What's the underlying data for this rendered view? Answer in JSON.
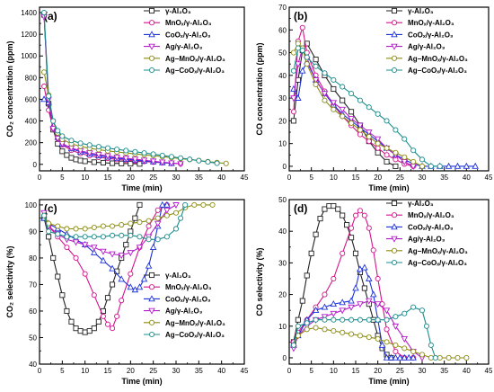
{
  "colors": {
    "gamma": "#222222",
    "mnox": "#d4148c",
    "coox": "#1f33d8",
    "ag": "#b41ec8",
    "agmn": "#8c8c12",
    "agco": "#1a8c8c"
  },
  "legend_entries": [
    "γ-Al₂O₃",
    "MnOₓ/γ-Al₂O₃",
    "CoOₓ/γ-Al₂O₃",
    "Ag/γ-Al₂O₃",
    "Ag−MnOₓ/γ-Al₂O₃",
    "Ag−CoOₓ/γ-Al₂O₃"
  ],
  "marker_shapes": [
    "square",
    "circle",
    "triangle",
    "triangle-down",
    "circle",
    "circle"
  ],
  "chart_data": [
    {
      "panel": "(a)",
      "type": "line",
      "xlabel": "Time (min)",
      "ylabel": "CO₂ concentration (ppm)",
      "xlim": [
        0,
        45
      ],
      "ylim": [
        -60,
        1450
      ],
      "xticks": [
        0,
        5,
        10,
        15,
        20,
        25,
        30,
        35,
        40,
        45
      ],
      "yticks": [
        0,
        200,
        400,
        600,
        800,
        1000,
        1200,
        1400
      ],
      "legend": "top-right",
      "series": [
        {
          "name": "γ-Al₂O₃",
          "x": [
            1,
            2,
            3,
            4,
            5,
            6,
            7,
            8,
            9,
            10,
            12,
            14,
            16,
            18,
            20,
            22
          ],
          "y": [
            1380,
            560,
            320,
            190,
            120,
            85,
            60,
            45,
            35,
            28,
            20,
            15,
            10,
            8,
            6,
            4
          ]
        },
        {
          "name": "MnOₓ/γ-Al₂O₃",
          "x": [
            1,
            2,
            3,
            4,
            5,
            7,
            9,
            11,
            13,
            15,
            17,
            19,
            21,
            23,
            25,
            27,
            29,
            31
          ],
          "y": [
            720,
            500,
            330,
            240,
            180,
            130,
            100,
            80,
            65,
            55,
            45,
            38,
            32,
            26,
            20,
            15,
            10,
            6
          ]
        },
        {
          "name": "CoOₓ/γ-Al₂O₃",
          "x": [
            1,
            2,
            3,
            4,
            5,
            7,
            9,
            11,
            13,
            15,
            17,
            19,
            21,
            23,
            25,
            27,
            29
          ],
          "y": [
            600,
            570,
            360,
            250,
            190,
            145,
            115,
            95,
            80,
            67,
            57,
            48,
            40,
            32,
            24,
            16,
            8
          ]
        },
        {
          "name": "Ag/γ-Al₂O₃",
          "x": [
            1,
            2,
            3,
            4,
            5,
            7,
            9,
            11,
            13,
            15,
            17,
            19,
            21,
            23,
            25,
            27,
            29,
            31
          ],
          "y": [
            1360,
            600,
            330,
            240,
            190,
            150,
            125,
            105,
            90,
            78,
            66,
            56,
            47,
            38,
            29,
            20,
            12,
            5
          ]
        },
        {
          "name": "Ag−MnOₓ/γ-Al₂O₃",
          "x": [
            1,
            2,
            3,
            4,
            5,
            7,
            9,
            11,
            13,
            15,
            17,
            19,
            21,
            23,
            25,
            27,
            29,
            31,
            33,
            35,
            37,
            39,
            41
          ],
          "y": [
            850,
            640,
            400,
            290,
            230,
            190,
            165,
            148,
            135,
            124,
            114,
            105,
            96,
            88,
            80,
            71,
            62,
            53,
            44,
            35,
            25,
            16,
            8
          ]
        },
        {
          "name": "Ag−CoOₓ/γ-Al₂O₃",
          "x": [
            1,
            2,
            3,
            4,
            5,
            7,
            9,
            11,
            13,
            15,
            17,
            19,
            21,
            23,
            25,
            27,
            29,
            31,
            33,
            35,
            37,
            39
          ],
          "y": [
            1400,
            630,
            400,
            310,
            260,
            220,
            195,
            178,
            163,
            150,
            138,
            127,
            116,
            105,
            94,
            82,
            70,
            58,
            46,
            34,
            22,
            10
          ]
        }
      ]
    },
    {
      "panel": "(b)",
      "type": "line",
      "xlabel": "Time (min)",
      "ylabel": "CO concentration (ppm)",
      "xlim": [
        0,
        45
      ],
      "ylim": [
        -2,
        70
      ],
      "xticks": [
        0,
        5,
        10,
        15,
        20,
        25,
        30,
        35,
        40,
        45
      ],
      "yticks": [
        0,
        10,
        20,
        30,
        40,
        50,
        60,
        70
      ],
      "legend": "top-right",
      "series": [
        {
          "name": "γ-Al₂O₃",
          "x": [
            1,
            2,
            3,
            4,
            6,
            8,
            10,
            12,
            14,
            16,
            18,
            20,
            22,
            24
          ],
          "y": [
            20,
            38,
            51,
            54,
            47,
            40,
            34,
            29,
            24,
            18,
            11,
            6,
            2,
            0
          ]
        },
        {
          "name": "MnOₓ/γ-Al₂O₃",
          "x": [
            1,
            2,
            3,
            4,
            6,
            8,
            10,
            12,
            14,
            16,
            18,
            20,
            22,
            24,
            26,
            28
          ],
          "y": [
            24,
            55,
            61,
            50,
            40,
            33,
            27,
            22,
            18,
            14,
            11,
            8,
            5,
            3,
            1,
            0
          ]
        },
        {
          "name": "CoOₓ/γ-Al₂O₃",
          "x": [
            1,
            2,
            3,
            4,
            6,
            8,
            10,
            12,
            14,
            16,
            18,
            20,
            22,
            24,
            26,
            28,
            30,
            32,
            34,
            36,
            38,
            40,
            42
          ],
          "y": [
            34,
            30,
            42,
            46,
            38,
            32,
            27,
            23,
            20,
            17,
            14,
            11,
            8,
            5,
            3,
            1,
            0,
            0,
            0,
            0,
            0,
            0,
            0
          ]
        },
        {
          "name": "Ag/γ-Al₂O₃",
          "x": [
            1,
            2,
            3,
            4,
            6,
            8,
            10,
            12,
            14,
            16,
            18,
            20,
            22,
            24,
            26,
            28
          ],
          "y": [
            30,
            45,
            52,
            47,
            38,
            32,
            28,
            25,
            21,
            18,
            15,
            12,
            8,
            5,
            2,
            0
          ]
        },
        {
          "name": "Ag−MnOₓ/γ-Al₂O₃",
          "x": [
            1,
            2,
            3,
            4,
            6,
            8,
            10,
            12,
            14,
            16,
            18,
            20,
            22,
            24,
            26,
            28,
            30
          ],
          "y": [
            50,
            54,
            52,
            45,
            36,
            29,
            25,
            22,
            19,
            16,
            13,
            10,
            8,
            6,
            4,
            2,
            0
          ]
        },
        {
          "name": "Ag−CoOₓ/γ-Al₂O₃",
          "x": [
            1,
            2,
            3,
            4,
            6,
            8,
            10,
            12,
            14,
            16,
            18,
            20,
            22,
            24,
            26,
            28,
            30,
            32,
            34
          ],
          "y": [
            42,
            52,
            51,
            48,
            44,
            41,
            38,
            35,
            32,
            29,
            26,
            23,
            20,
            16,
            12,
            7,
            3,
            0,
            0
          ]
        }
      ]
    },
    {
      "panel": "(c)",
      "type": "line",
      "xlabel": "Time (min)",
      "ylabel": "CO₂ selectivity (%)",
      "xlim": [
        0,
        45
      ],
      "ylim": [
        40,
        102
      ],
      "xticks": [
        0,
        5,
        10,
        15,
        20,
        25,
        30,
        35,
        40,
        45
      ],
      "yticks": [
        40,
        50,
        60,
        70,
        80,
        90,
        100
      ],
      "legend": "bottom-right",
      "series": [
        {
          "name": "γ-Al₂O₃",
          "x": [
            1,
            2,
            3,
            4,
            5,
            6,
            7,
            8,
            9,
            10,
            11,
            12,
            13,
            14,
            15,
            16,
            17,
            18,
            19,
            20,
            21,
            22
          ],
          "y": [
            95,
            88,
            80,
            73,
            66,
            60,
            56,
            53.5,
            52.5,
            52,
            52.5,
            53.5,
            56,
            60,
            65,
            70,
            75,
            80,
            85,
            90,
            95,
            100
          ]
        },
        {
          "name": "MnOₓ/γ-Al₂O₃",
          "x": [
            1,
            2,
            4,
            6,
            8,
            10,
            12,
            14,
            15,
            16,
            17,
            18,
            20,
            22,
            24,
            26,
            28
          ],
          "y": [
            96,
            92,
            88,
            84,
            80,
            74,
            66,
            58,
            55,
            53.5,
            58,
            64,
            74,
            84,
            92,
            98,
            100
          ]
        },
        {
          "name": "CoOₓ/γ-Al₂O₃",
          "x": [
            1,
            2,
            4,
            6,
            8,
            10,
            12,
            14,
            16,
            18,
            20,
            21,
            22,
            23,
            24,
            25,
            26,
            27,
            28
          ],
          "y": [
            95,
            93,
            91,
            89,
            87,
            85,
            82,
            79,
            76,
            72,
            69,
            68,
            69,
            72,
            77,
            84,
            92,
            100,
            100
          ]
        },
        {
          "name": "Ag/γ-Al₂O₃",
          "x": [
            1,
            2,
            4,
            6,
            8,
            10,
            12,
            14,
            16,
            18,
            20,
            22,
            24,
            26,
            28,
            30
          ],
          "y": [
            97,
            92,
            89,
            87,
            86,
            85,
            84,
            82.5,
            81.5,
            81,
            82,
            84,
            88,
            93,
            98,
            100
          ]
        },
        {
          "name": "Ag−MnOₓ/γ-Al₂O₃",
          "x": [
            1,
            2,
            4,
            6,
            8,
            10,
            12,
            14,
            16,
            18,
            20,
            22,
            24,
            26,
            28,
            30,
            32,
            34,
            36,
            38
          ],
          "y": [
            96,
            93,
            92,
            91,
            91,
            91,
            91.5,
            92,
            92,
            92.5,
            93,
            93.5,
            94,
            95,
            96,
            97,
            99,
            100,
            100,
            100
          ]
        },
        {
          "name": "Ag−CoOₓ/γ-Al₂O₃",
          "x": [
            1,
            2,
            4,
            6,
            8,
            10,
            12,
            14,
            16,
            18,
            20,
            22,
            24,
            26,
            28,
            30,
            31,
            32
          ],
          "y": [
            96,
            90,
            89,
            88,
            88,
            88,
            88,
            88,
            88.5,
            88.5,
            88.5,
            88,
            87,
            87,
            88,
            91,
            95,
            100
          ]
        }
      ]
    },
    {
      "panel": "(d)",
      "type": "line",
      "xlabel": "Time (min)",
      "ylabel": "CO selectivity (%)",
      "xlim": [
        0,
        45
      ],
      "ylim": [
        -2,
        50
      ],
      "xticks": [
        0,
        5,
        10,
        15,
        20,
        25,
        30,
        35,
        40,
        45
      ],
      "yticks": [
        0,
        10,
        20,
        30,
        40,
        50
      ],
      "legend": "top-right",
      "series": [
        {
          "name": "γ-Al₂O₃",
          "x": [
            1,
            2,
            3,
            4,
            5,
            6,
            7,
            8,
            9,
            10,
            11,
            12,
            13,
            14,
            15,
            16,
            17,
            18,
            19,
            20,
            21,
            22,
            23
          ],
          "y": [
            5,
            12,
            18,
            26,
            33,
            39,
            44,
            47,
            48,
            48,
            47,
            45,
            42,
            38,
            33,
            27,
            22,
            17,
            12,
            7,
            3,
            1,
            0
          ]
        },
        {
          "name": "MnOₓ/γ-Al₂O₃",
          "x": [
            1,
            2,
            4,
            6,
            8,
            10,
            12,
            14,
            15,
            16,
            17,
            18,
            19,
            20,
            21,
            22,
            24,
            26,
            28
          ],
          "y": [
            5,
            8,
            12,
            16,
            20,
            25,
            33,
            41,
            45,
            46.5,
            45,
            41,
            34,
            25,
            17,
            9,
            2,
            0,
            0
          ]
        },
        {
          "name": "CoOₓ/γ-Al₂O₃",
          "x": [
            1,
            2,
            4,
            6,
            8,
            10,
            12,
            14,
            15,
            16,
            17,
            18,
            19,
            20,
            21,
            22,
            23,
            24,
            25,
            26,
            27,
            28
          ],
          "y": [
            4,
            7,
            12,
            15,
            16,
            17,
            17.5,
            18,
            22,
            28,
            28.5,
            25,
            20,
            12,
            4,
            0,
            0,
            0,
            0,
            0,
            0,
            0
          ]
        },
        {
          "name": "Ag/γ-Al₂O₃",
          "x": [
            1,
            2,
            4,
            6,
            8,
            10,
            12,
            14,
            16,
            18,
            20,
            22,
            24,
            26,
            28,
            30
          ],
          "y": [
            3,
            7,
            10,
            12,
            13,
            14,
            15,
            16,
            17,
            18,
            17,
            15,
            10,
            6,
            2,
            0
          ]
        },
        {
          "name": "Ag−MnOₓ/γ-Al₂O₃",
          "x": [
            1,
            2,
            4,
            6,
            8,
            10,
            12,
            14,
            16,
            18,
            20,
            22,
            24,
            26,
            28,
            30,
            32,
            34,
            36,
            38,
            40
          ],
          "y": [
            4,
            7,
            9,
            9.5,
            9,
            8.5,
            8,
            7.5,
            7,
            6.5,
            6,
            5,
            4,
            3,
            2,
            1,
            0,
            0,
            0,
            0,
            0
          ]
        },
        {
          "name": "Ag−CoOₓ/γ-Al₂O₃",
          "x": [
            1,
            2,
            4,
            6,
            8,
            10,
            12,
            14,
            16,
            18,
            20,
            22,
            24,
            26,
            28,
            30,
            31,
            32,
            33
          ],
          "y": [
            4,
            10,
            11,
            12,
            12,
            12,
            12,
            12,
            12,
            12,
            12,
            12,
            13,
            14,
            16,
            15,
            10,
            4,
            0
          ]
        }
      ]
    }
  ]
}
